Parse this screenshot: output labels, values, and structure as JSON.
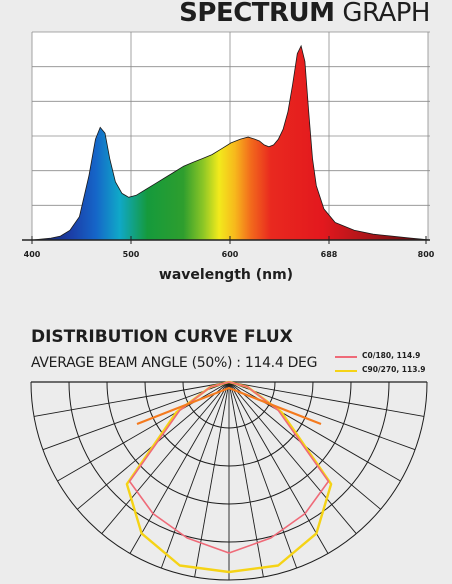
{
  "spectrum": {
    "title_bold": "SPECTRUM",
    "title_light": "GRAPH"
  },
  "chart_data": [
    {
      "type": "area",
      "xlabel": "wavelength (nm)",
      "tick_labels": [
        "400",
        "500",
        "600",
        "688",
        "800"
      ],
      "x": [
        380,
        400,
        410,
        420,
        430,
        440,
        447,
        452,
        457,
        462,
        468,
        475,
        482,
        490,
        500,
        510,
        520,
        530,
        540,
        550,
        560,
        570,
        580,
        590,
        600,
        608,
        615,
        620,
        625,
        630,
        635,
        640,
        645,
        650,
        655,
        660,
        664,
        668,
        672,
        676,
        680,
        688,
        700,
        720,
        740,
        760,
        780,
        790,
        800
      ],
      "values": [
        0,
        0.01,
        0.02,
        0.05,
        0.12,
        0.33,
        0.52,
        0.58,
        0.55,
        0.42,
        0.3,
        0.24,
        0.22,
        0.23,
        0.26,
        0.29,
        0.32,
        0.35,
        0.38,
        0.4,
        0.42,
        0.44,
        0.47,
        0.5,
        0.52,
        0.53,
        0.52,
        0.51,
        0.49,
        0.48,
        0.49,
        0.52,
        0.57,
        0.66,
        0.8,
        0.96,
        1.0,
        0.92,
        0.66,
        0.42,
        0.28,
        0.16,
        0.09,
        0.05,
        0.03,
        0.02,
        0.01,
        0.005,
        0
      ],
      "ylim": [
        0,
        1.05
      ],
      "grid": true
    },
    {
      "type": "line",
      "title": "DISTRIBUTION CURVE FLUX",
      "subtitle": "AVERAGE BEAM ANGLE  (50%) : 114.4 DEG",
      "series": [
        {
          "name": "C0/180, 114.9",
          "color": "#ef6a78",
          "angles": [
            -90,
            -75,
            -60,
            -45,
            -30,
            -15,
            0,
            15,
            30,
            45,
            60,
            75,
            90
          ],
          "values": [
            0,
            0.1,
            0.3,
            0.74,
            0.8,
            0.85,
            0.9,
            0.85,
            0.8,
            0.74,
            0.3,
            0.1,
            0
          ]
        },
        {
          "name": "C90/270, 113.9",
          "color": "#f5d316",
          "angles": [
            -90,
            -75,
            -60,
            -45,
            -30,
            -15,
            0,
            15,
            30,
            45,
            60,
            75,
            90
          ],
          "values": [
            0,
            0.1,
            0.32,
            0.76,
            0.92,
            1.0,
            1.0,
            1.0,
            0.92,
            0.76,
            0.32,
            0.1,
            0
          ]
        }
      ],
      "orange_accent": "#f47a1e"
    }
  ]
}
